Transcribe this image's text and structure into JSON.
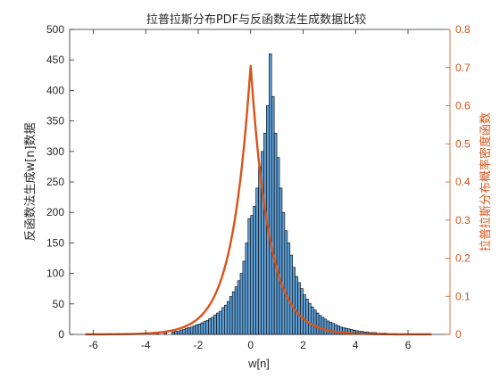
{
  "chart_data": {
    "type": "bar",
    "title": "拉普拉斯分布PDF与反函数法生成数据比较",
    "xlabel": "w[n]",
    "ylabel_left": "反函数法生成w[n]数据",
    "ylabel_right": "拉普拉斯分布概率密度函数",
    "xlim": [
      -6.9,
      7.6
    ],
    "ylim_left": [
      0,
      500
    ],
    "ylim_right": [
      0,
      0.8
    ],
    "xticks": [
      -6,
      -4,
      -2,
      0,
      2,
      4,
      6
    ],
    "yticks_left": [
      0,
      50,
      100,
      150,
      200,
      250,
      300,
      350,
      400,
      450,
      500
    ],
    "yticks_right": [
      0,
      0.1,
      0.2,
      0.3,
      0.4,
      0.5,
      0.6,
      0.7,
      0.8
    ],
    "grid": false,
    "histogram": {
      "bin_width": 0.1,
      "bin_edges_start": -3.0,
      "counts": [
        4,
        5,
        5,
        7,
        8,
        10,
        11,
        12,
        14,
        16,
        17,
        19,
        21,
        23,
        26,
        28,
        32,
        35,
        38,
        44,
        48,
        54,
        62,
        70,
        78,
        88,
        100,
        120,
        150,
        190,
        195,
        210,
        240,
        275,
        300,
        330,
        375,
        460,
        390,
        330,
        290,
        240,
        200,
        170,
        150,
        130,
        110,
        95,
        85,
        75,
        65,
        58,
        51,
        45,
        40,
        35,
        31,
        28,
        25,
        22,
        20,
        18,
        16,
        14,
        12,
        11,
        10,
        9,
        8,
        7,
        6,
        5,
        5,
        4,
        4,
        3,
        3,
        3,
        2,
        2,
        2,
        2,
        1,
        1,
        1,
        1,
        1,
        1,
        1,
        1
      ],
      "outlier_bins": [
        {
          "x": -6.2,
          "count": 1
        },
        {
          "x": -4.9,
          "count": 1
        },
        {
          "x": -4.3,
          "count": 1
        },
        {
          "x": -3.6,
          "count": 2
        },
        {
          "x": -3.3,
          "count": 3
        },
        {
          "x": 4.2,
          "count": 1
        },
        {
          "x": 4.6,
          "count": 1
        }
      ],
      "fill_color": "#5e9fd6",
      "edge_color": "#000000"
    },
    "pdf_curve": {
      "function": "laplace",
      "mu": 0,
      "b": 0.707,
      "x_range": [
        -6.3,
        6.9
      ],
      "color": "#d95319"
    },
    "colors": {
      "left_axis": "#262626",
      "right_axis": "#d95319"
    }
  }
}
